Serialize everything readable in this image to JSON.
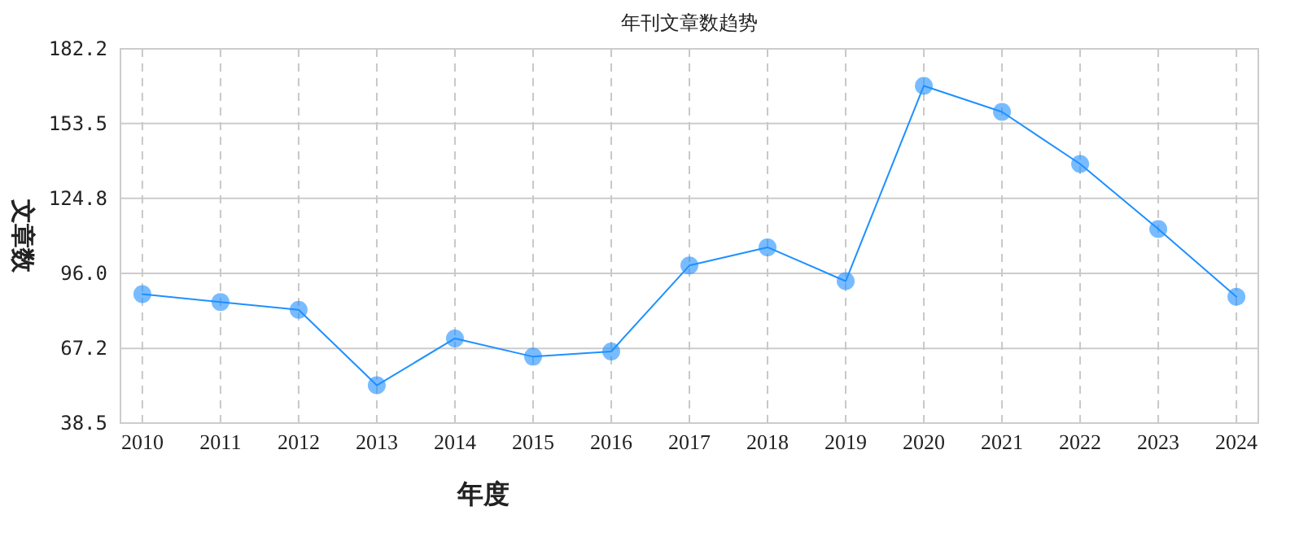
{
  "chart_data": {
    "type": "line",
    "title": "年刊文章数趋势",
    "xlabel": "年度",
    "ylabel": "文章数",
    "categories": [
      "2010",
      "2011",
      "2012",
      "2013",
      "2014",
      "2015",
      "2016",
      "2017",
      "2018",
      "2019",
      "2020",
      "2021",
      "2022",
      "2023",
      "2024"
    ],
    "series": [
      {
        "color": "#1e90ff",
        "values": [
          88,
          85,
          82,
          53,
          71,
          64,
          66,
          99,
          106,
          93,
          168,
          158,
          138,
          113,
          87
        ]
      }
    ],
    "ylim": [
      38.5,
      182.2
    ],
    "yticks": [
      38.5,
      67.2,
      {
        "value": 96,
        "label": "96.0"
      },
      124.8,
      153.5,
      182.2
    ],
    "grid": true,
    "marker": "circle",
    "line_style": "solid"
  }
}
